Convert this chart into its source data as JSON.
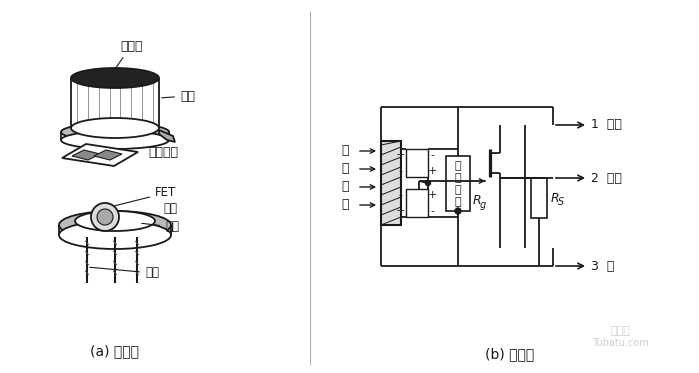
{
  "bg_color": "#ffffff",
  "left_panel_label": "(a) 结构图",
  "right_panel_label": "(b) 电路图",
  "left_labels": {
    "filter": "滤光片",
    "cap": "管帽",
    "sensing": "敏感元件",
    "fet": "FET",
    "socket": "管座",
    "high_r": "高阻",
    "pins": "引脚"
  },
  "right_labels": {
    "ir": [
      "红",
      "外",
      "辐",
      "射"
    ],
    "high_r_block": [
      "高",
      "值",
      "电",
      "阻"
    ],
    "rg": "R",
    "rg_sub": "g",
    "rs": "R",
    "rs_sub": "S",
    "drain": "1  漏级",
    "source": "2  源级",
    "ground": "3  地",
    "plus": "+",
    "minus": "-"
  },
  "line_color": "#1a1a1a",
  "text_color": "#1a1a1a",
  "watermark1": "土巴兔",
  "watermark2": "Tubatu.com"
}
